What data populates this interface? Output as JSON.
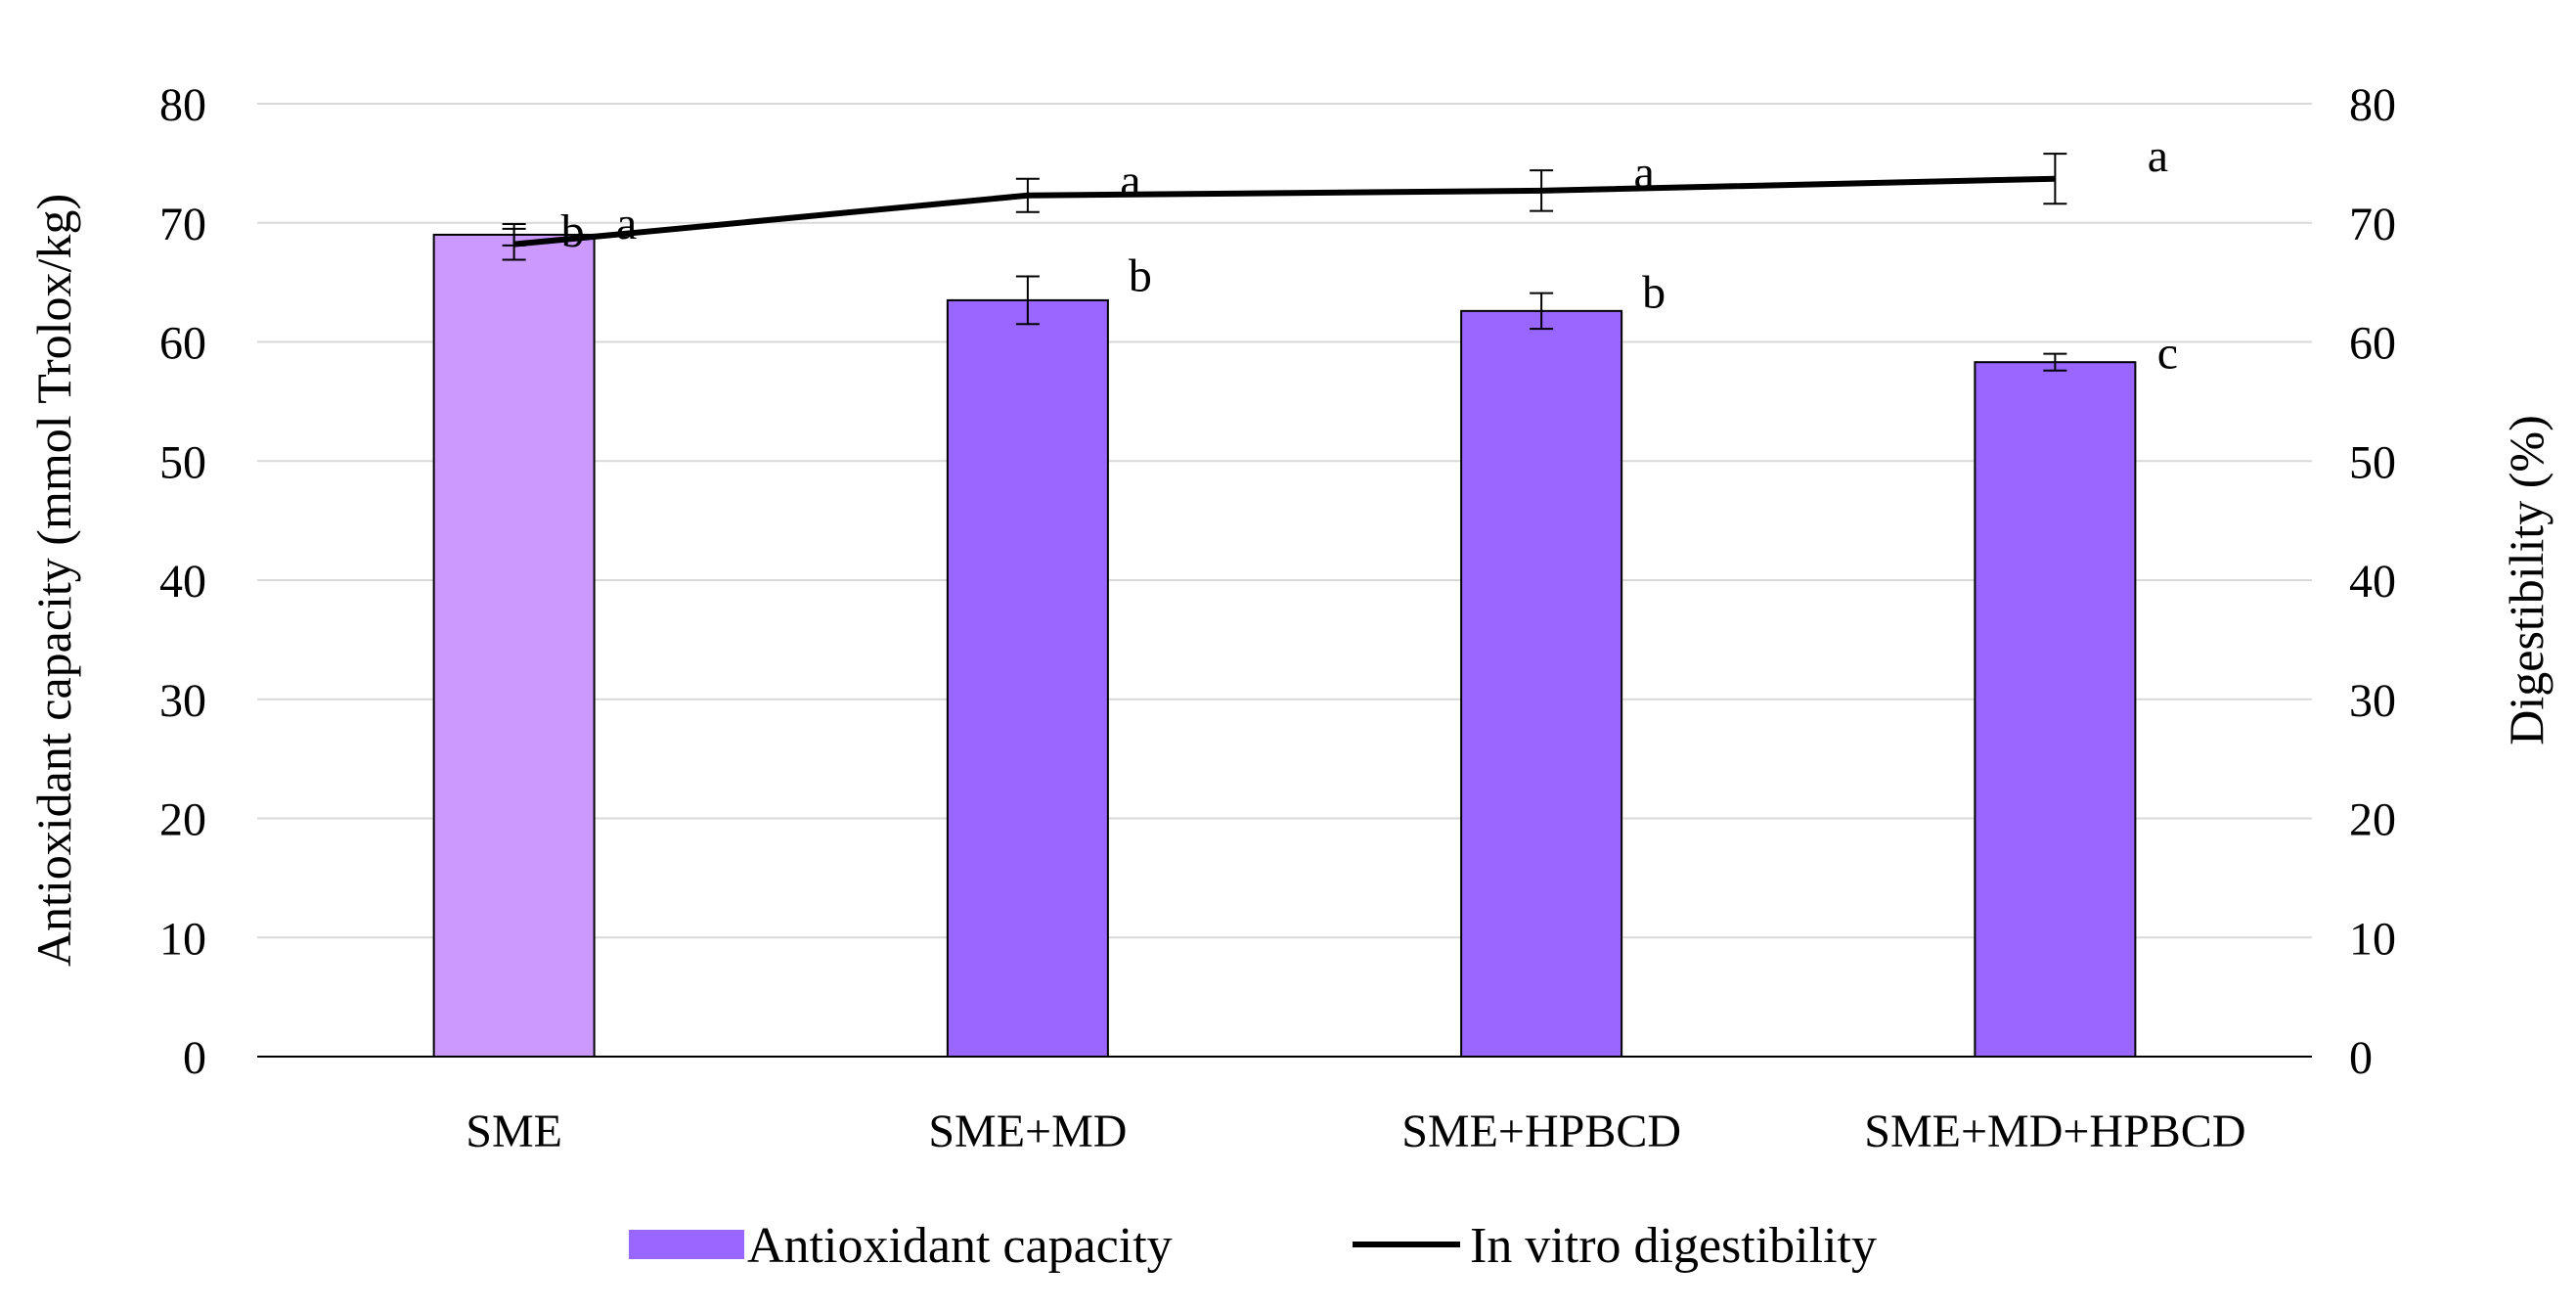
{
  "chart_data": {
    "type": "bar",
    "categories": [
      "SME",
      "SME+MD",
      "SME+HPBCD",
      "SME+MD+HPBCD"
    ],
    "series": [
      {
        "name": "Antioxidant capacity",
        "kind": "bar",
        "axis": "left",
        "values": [
          69.0,
          63.5,
          62.6,
          58.3
        ],
        "errors": [
          0.9,
          2.0,
          1.5,
          0.7
        ],
        "significance": [
          "a",
          "b",
          "b",
          "c"
        ],
        "colors": [
          "#cc99ff",
          "#9966ff",
          "#9966ff",
          "#9966ff"
        ]
      },
      {
        "name": "In vitro digestibility",
        "kind": "line",
        "axis": "right",
        "values": [
          68.2,
          72.3,
          72.7,
          73.7
        ],
        "errors": [
          1.3,
          1.4,
          1.7,
          2.1
        ],
        "significance": [
          "b",
          "a",
          "a",
          "a"
        ],
        "color": "#000000"
      }
    ],
    "ylabel": "Antioxidant capacity (mmol Trolox/kg)",
    "y2label": "Digestibility   (%)",
    "ylim": [
      0,
      80
    ],
    "y2lim": [
      0,
      80
    ],
    "yticks": [
      0,
      10,
      20,
      30,
      40,
      50,
      60,
      70,
      80
    ],
    "y2ticks": [
      0,
      10,
      20,
      30,
      40,
      50,
      60,
      70,
      80
    ],
    "grid": true,
    "legend": {
      "position": "bottom",
      "entries": [
        "Antioxidant capacity",
        "In vitro digestibility"
      ]
    }
  }
}
